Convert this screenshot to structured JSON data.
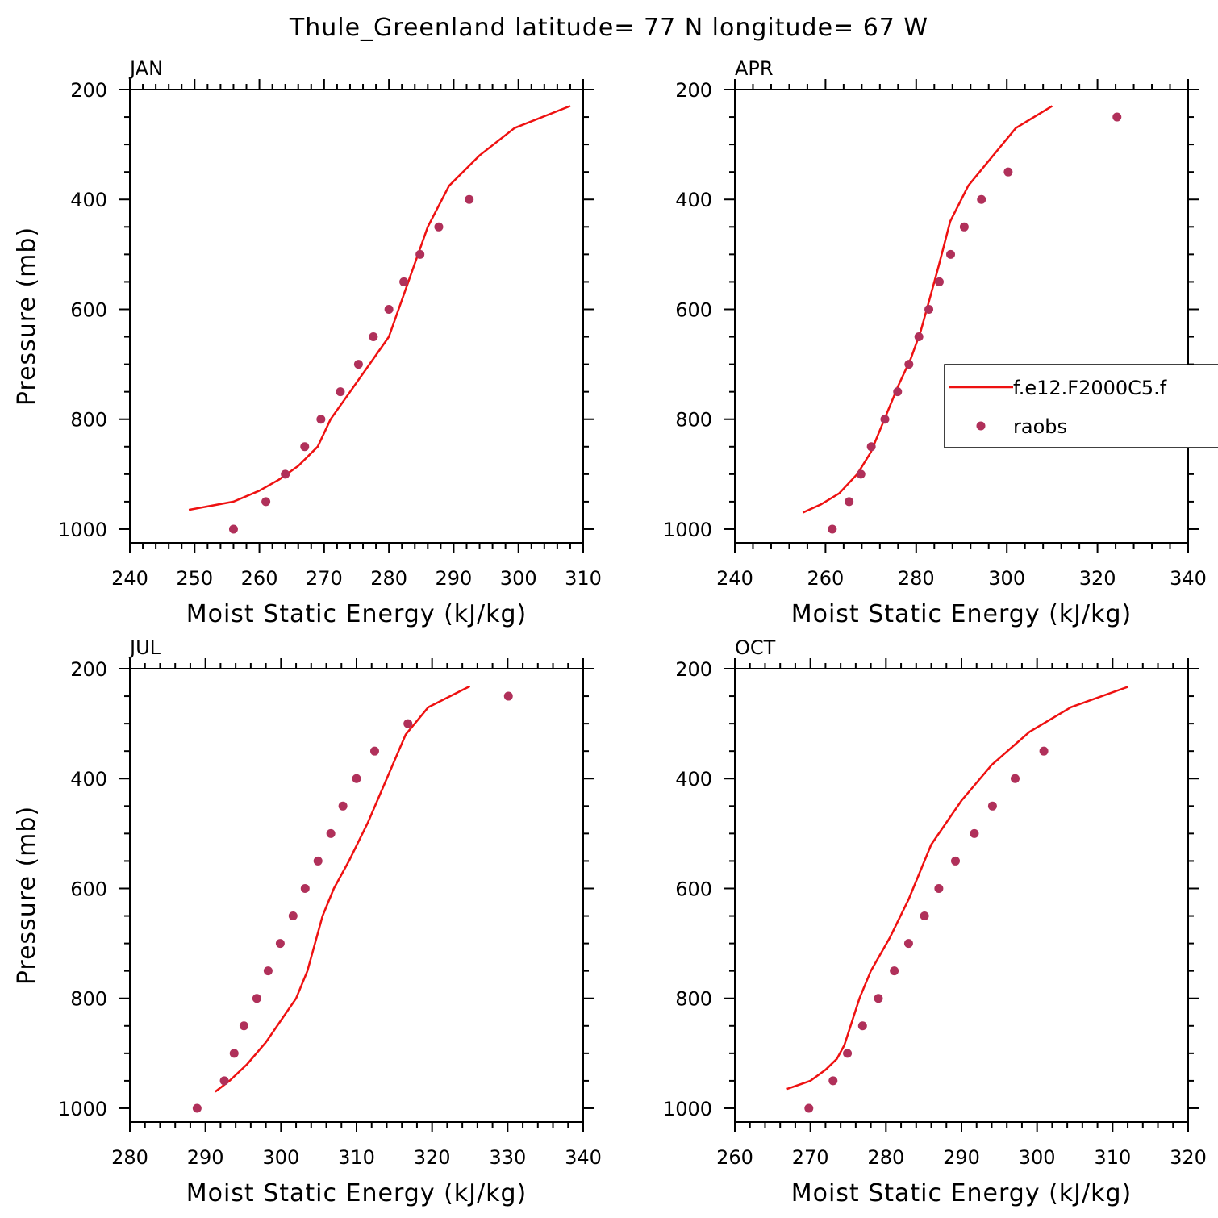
{
  "figure": {
    "title": "Thule_Greenland  latitude= 77 N longitude= 67 W"
  },
  "colors": {
    "model": "#ee1111",
    "obs": "#b0305a",
    "axis": "#000000"
  },
  "legend": {
    "model_label": "f.e12.F2000C5.f",
    "obs_label": "raobs",
    "panel": "APR"
  },
  "chart_data": [
    {
      "type": "line",
      "panel": "JAN",
      "xlabel": "Moist Static Energy (kJ/kg)",
      "ylabel": "Pressure (mb)",
      "xlim": [
        240,
        310
      ],
      "ylim": [
        1025,
        200
      ],
      "xticks": [
        240,
        250,
        260,
        270,
        280,
        290,
        300,
        310
      ],
      "yticks": [
        200,
        400,
        600,
        800,
        1000
      ],
      "model": {
        "name": "f.e12.F2000C5.f",
        "x": [
          249.1,
          256,
          260,
          263,
          266,
          269,
          271,
          274,
          277,
          280,
          283,
          286,
          289.3,
          294,
          299.4,
          308
        ],
        "y": [
          965,
          950,
          930,
          910,
          885,
          850,
          800,
          750,
          700,
          650,
          550,
          450,
          375,
          320,
          270,
          230
        ]
      },
      "obs": {
        "name": "raobs",
        "x": [
          256,
          261,
          264,
          267,
          269.5,
          272.5,
          275.3,
          277.6,
          280,
          282.3,
          284.8,
          287.7,
          292.4
        ],
        "y": [
          1000,
          950,
          900,
          850,
          800,
          750,
          700,
          650,
          600,
          550,
          500,
          450,
          400
        ]
      }
    },
    {
      "type": "line",
      "panel": "APR",
      "xlabel": "Moist Static Energy (kJ/kg)",
      "ylabel": "",
      "xlim": [
        240,
        340
      ],
      "ylim": [
        1025,
        200
      ],
      "xticks": [
        240,
        260,
        280,
        300,
        320,
        340
      ],
      "yticks": [
        200,
        400,
        600,
        800,
        1000
      ],
      "model": {
        "name": "f.e12.F2000C5.f",
        "x": [
          255,
          259,
          263,
          267,
          270,
          273,
          276,
          278.8,
          281,
          283,
          285,
          287.5,
          291.5,
          297,
          302,
          310
        ],
        "y": [
          970,
          955,
          935,
          900,
          860,
          800,
          740,
          690,
          640,
          580,
          520,
          440,
          375,
          320,
          270,
          230
        ]
      },
      "obs": {
        "name": "raobs",
        "x": [
          261.5,
          265.2,
          267.8,
          270.1,
          273.1,
          275.9,
          278.4,
          280.6,
          282.8,
          285.1,
          287.6,
          290.6,
          294.4,
          300.3,
          324.3
        ],
        "y": [
          1000,
          950,
          900,
          850,
          800,
          750,
          700,
          650,
          600,
          550,
          500,
          450,
          400,
          350,
          250
        ]
      }
    },
    {
      "type": "line",
      "panel": "JUL",
      "xlabel": "Moist Static Energy (kJ/kg)",
      "ylabel": "Pressure (mb)",
      "xlim": [
        280,
        340
      ],
      "ylim": [
        1025,
        200
      ],
      "xticks": [
        280,
        290,
        300,
        310,
        320,
        330,
        340
      ],
      "yticks": [
        200,
        400,
        600,
        800,
        1000
      ],
      "model": {
        "name": "f.e12.F2000C5.f",
        "x": [
          291.3,
          293.2,
          295.5,
          298,
          300,
          302,
          303.5,
          304.5,
          305.5,
          307,
          309,
          311.5,
          314,
          316.5,
          319.5,
          325
        ],
        "y": [
          970,
          950,
          920,
          880,
          840,
          800,
          750,
          700,
          650,
          600,
          550,
          480,
          400,
          320,
          270,
          232
        ]
      },
      "obs": {
        "name": "raobs",
        "x": [
          288.9,
          292.5,
          293.8,
          295.1,
          296.8,
          298.3,
          299.9,
          301.6,
          303.2,
          304.9,
          306.6,
          308.2,
          310,
          312.4,
          316.8,
          330.1
        ],
        "y": [
          1000,
          950,
          900,
          850,
          800,
          750,
          700,
          650,
          600,
          550,
          500,
          450,
          400,
          350,
          300,
          250
        ]
      }
    },
    {
      "type": "line",
      "panel": "OCT",
      "xlabel": "Moist Static Energy (kJ/kg)",
      "ylabel": "",
      "xlim": [
        260,
        320
      ],
      "ylim": [
        1025,
        200
      ],
      "xticks": [
        260,
        270,
        280,
        290,
        300,
        310,
        320
      ],
      "yticks": [
        200,
        400,
        600,
        800,
        1000
      ],
      "model": {
        "name": "f.e12.F2000C5.f",
        "x": [
          266.9,
          270,
          272,
          273.5,
          274.5,
          276.5,
          278,
          280.5,
          283,
          286,
          290,
          294,
          299,
          304.5,
          312
        ],
        "y": [
          965,
          950,
          930,
          910,
          885,
          800,
          750,
          690,
          620,
          520,
          440,
          375,
          315,
          270,
          233
        ]
      },
      "obs": {
        "name": "raobs",
        "x": [
          269.8,
          273,
          274.9,
          276.9,
          279,
          281.1,
          283,
          285.1,
          287,
          289.2,
          291.7,
          294.1,
          297.1,
          300.9
        ],
        "y": [
          1000,
          950,
          900,
          850,
          800,
          750,
          700,
          650,
          600,
          550,
          500,
          450,
          400,
          350
        ]
      }
    }
  ]
}
